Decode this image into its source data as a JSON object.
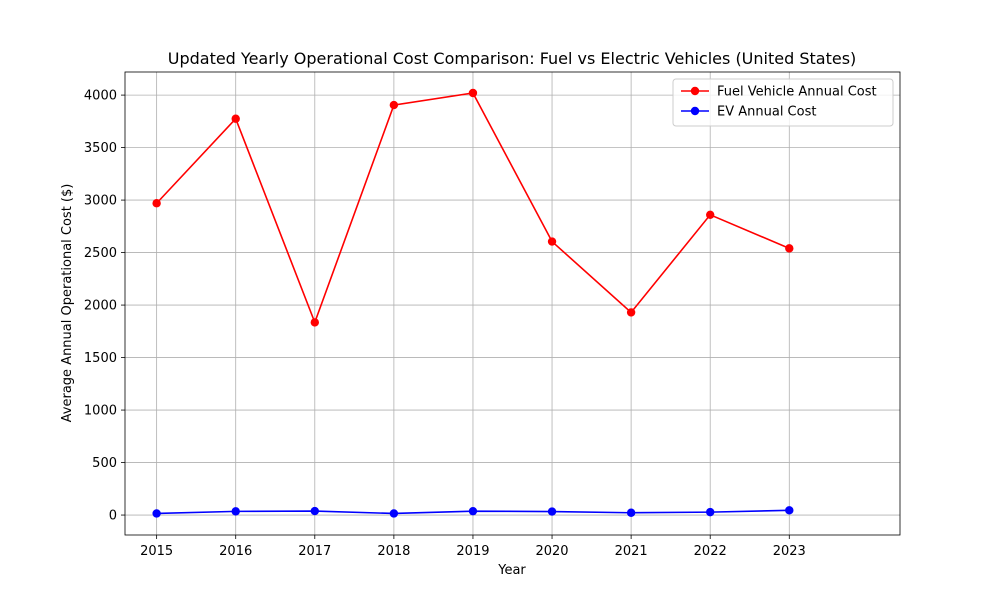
{
  "chart_data": {
    "type": "line",
    "title": "Updated Yearly Operational Cost Comparison: Fuel vs Electric Vehicles (United States)",
    "xlabel": "Year",
    "ylabel": "Average Annual Operational Cost ($)",
    "categories": [
      "2015",
      "2016",
      "2017",
      "2018",
      "2019",
      "2020",
      "2021",
      "2022",
      "2023"
    ],
    "x": [
      2015,
      2016,
      2017,
      2018,
      2019,
      2020,
      2021,
      2022,
      2023
    ],
    "xlim": [
      2014.6,
      2024.4
    ],
    "ylim": [
      -190,
      4220
    ],
    "yticks": [
      0,
      500,
      1000,
      1500,
      2000,
      2500,
      3000,
      3500,
      4000
    ],
    "grid": true,
    "legend_position": "top-right",
    "series": [
      {
        "name": "Fuel Vehicle Annual Cost",
        "color": "#ff0000",
        "marker": "circle",
        "values": [
          2970,
          3775,
          1835,
          3905,
          4020,
          2605,
          1930,
          2860,
          2540
        ]
      },
      {
        "name": "EV Annual Cost",
        "color": "#0000ff",
        "marker": "circle",
        "values": [
          15,
          35,
          38,
          15,
          37,
          33,
          22,
          28,
          45
        ]
      }
    ]
  }
}
